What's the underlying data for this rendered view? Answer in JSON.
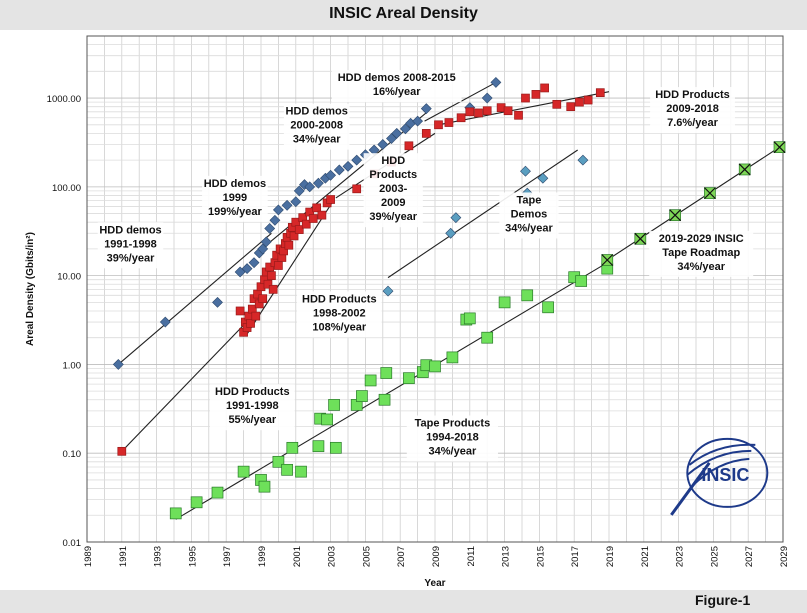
{
  "title": "INSIC Areal Density",
  "figure_label": "Figure-1",
  "chart_data": {
    "type": "scatter",
    "title": "INSIC Areal Density",
    "xlabel": "Year",
    "ylabel": "Areal Density (Gbits/in²)",
    "xlim": [
      1989,
      2029
    ],
    "ylim": [
      0.01,
      5000
    ],
    "yscale": "log",
    "grid": true,
    "x_ticks": [
      "1989",
      "1991",
      "1993",
      "1995",
      "1997",
      "1999",
      "2001",
      "2003",
      "2005",
      "2007",
      "2009",
      "2011",
      "2013",
      "2015",
      "2017",
      "2019",
      "2021",
      "2023",
      "2025",
      "2027",
      "2029"
    ],
    "y_ticks": [
      "0.01",
      "0.10",
      "1.00",
      "10.00",
      "100.00",
      "1000.00"
    ],
    "colors": {
      "hdd_demos": "#4a6fa0",
      "hdd_products": "#d62728",
      "tape_demos": "#5a9ec0",
      "tape_products": "#6ee05a",
      "roadmap": "#7ed657"
    },
    "series": [
      {
        "key": "hdd_demos",
        "marker": "diamond",
        "points": [
          [
            1990.8,
            1.0
          ],
          [
            1993.5,
            3.0
          ],
          [
            1996.5,
            5.0
          ],
          [
            1997.8,
            11.0
          ],
          [
            1998.2,
            12.0
          ],
          [
            1998.6,
            14.0
          ],
          [
            1998.9,
            18.0
          ],
          [
            1999.1,
            20.0
          ],
          [
            1999.3,
            24.0
          ],
          [
            1999.5,
            34.0
          ],
          [
            1999.8,
            42.0
          ],
          [
            2000.0,
            55.0
          ],
          [
            2000.5,
            62.0
          ],
          [
            2001.0,
            68.0
          ],
          [
            2001.2,
            90.0
          ],
          [
            2001.5,
            106.0
          ],
          [
            2001.8,
            100.0
          ],
          [
            2002.3,
            110.0
          ],
          [
            2002.7,
            125.0
          ],
          [
            2003.0,
            135.0
          ],
          [
            2003.5,
            155.0
          ],
          [
            2004.0,
            170.0
          ],
          [
            2004.5,
            200.0
          ],
          [
            2005.0,
            230.0
          ],
          [
            2005.5,
            260.0
          ],
          [
            2006.0,
            300.0
          ],
          [
            2006.5,
            350.0
          ],
          [
            2006.8,
            400.0
          ],
          [
            2007.3,
            450.0
          ],
          [
            2007.6,
            520.0
          ],
          [
            2008.0,
            550.0
          ],
          [
            2008.5,
            760.0
          ],
          [
            2011.0,
            780.0
          ],
          [
            2012.0,
            1000.0
          ],
          [
            2012.5,
            1500.0
          ]
        ]
      },
      {
        "key": "hdd_products",
        "marker": "square",
        "points": [
          [
            1991.0,
            0.105
          ],
          [
            1997.8,
            4.0
          ],
          [
            1998.0,
            2.3
          ],
          [
            1998.1,
            3.0
          ],
          [
            1998.2,
            2.6
          ],
          [
            1998.3,
            3.5
          ],
          [
            1998.4,
            2.9
          ],
          [
            1998.5,
            4.2
          ],
          [
            1998.6,
            5.5
          ],
          [
            1998.7,
            3.5
          ],
          [
            1998.8,
            6.2
          ],
          [
            1998.9,
            4.8
          ],
          [
            1999.0,
            7.5
          ],
          [
            1999.1,
            5.5
          ],
          [
            1999.2,
            9.0
          ],
          [
            1999.3,
            11.0
          ],
          [
            1999.4,
            8.0
          ],
          [
            1999.5,
            12.5
          ],
          [
            1999.6,
            10.0
          ],
          [
            1999.7,
            7.0
          ],
          [
            1999.8,
            14.0
          ],
          [
            1999.9,
            17.0
          ],
          [
            2000.0,
            13.0
          ],
          [
            2000.1,
            20.0
          ],
          [
            2000.2,
            16.0
          ],
          [
            2000.3,
            19.0
          ],
          [
            2000.4,
            23.0
          ],
          [
            2000.5,
            27.0
          ],
          [
            2000.6,
            22.0
          ],
          [
            2000.7,
            30.0
          ],
          [
            2000.8,
            35.0
          ],
          [
            2000.9,
            28.0
          ],
          [
            2001.0,
            40.0
          ],
          [
            2001.2,
            33.0
          ],
          [
            2001.4,
            45.0
          ],
          [
            2001.6,
            38.0
          ],
          [
            2001.8,
            52.0
          ],
          [
            2002.0,
            44.0
          ],
          [
            2002.2,
            58.0
          ],
          [
            2002.5,
            48.0
          ],
          [
            2002.8,
            66.0
          ],
          [
            2003.0,
            72.0
          ],
          [
            2004.5,
            95.0
          ],
          [
            2005.5,
            140.0
          ],
          [
            2006.5,
            190.0
          ],
          [
            2007.5,
            290.0
          ],
          [
            2008.5,
            400.0
          ],
          [
            2009.2,
            500.0
          ],
          [
            2009.8,
            530.0
          ],
          [
            2010.5,
            600.0
          ],
          [
            2011.0,
            700.0
          ],
          [
            2011.5,
            680.0
          ],
          [
            2012.0,
            720.0
          ],
          [
            2012.8,
            780.0
          ],
          [
            2013.2,
            720.0
          ],
          [
            2013.8,
            640.0
          ],
          [
            2014.2,
            1000.0
          ],
          [
            2014.8,
            1100.0
          ],
          [
            2015.3,
            1300.0
          ],
          [
            2016.0,
            850.0
          ],
          [
            2016.8,
            800.0
          ],
          [
            2017.3,
            900.0
          ],
          [
            2017.8,
            950.0
          ],
          [
            2018.5,
            1150.0
          ]
        ]
      },
      {
        "key": "tape_demos",
        "marker": "diamond",
        "points": [
          [
            2006.3,
            6.7
          ],
          [
            2009.9,
            30.0
          ],
          [
            2010.2,
            45.0
          ],
          [
            2014.2,
            150.0
          ],
          [
            2014.3,
            85.0
          ],
          [
            2015.2,
            125.0
          ],
          [
            2017.5,
            200.0
          ]
        ]
      },
      {
        "key": "tape_products",
        "marker": "square",
        "points": [
          [
            1994.1,
            0.021
          ],
          [
            1995.3,
            0.028
          ],
          [
            1996.5,
            0.036
          ],
          [
            1998.0,
            0.062
          ],
          [
            1999.0,
            0.05
          ],
          [
            1999.2,
            0.042
          ],
          [
            2000.0,
            0.08
          ],
          [
            2000.5,
            0.065
          ],
          [
            2000.8,
            0.115
          ],
          [
            2001.3,
            0.062
          ],
          [
            2002.3,
            0.12
          ],
          [
            2002.4,
            0.245
          ],
          [
            2002.8,
            0.24
          ],
          [
            2003.2,
            0.35
          ],
          [
            2003.3,
            0.115
          ],
          [
            2004.5,
            0.35
          ],
          [
            2004.8,
            0.44
          ],
          [
            2005.3,
            0.66
          ],
          [
            2006.1,
            0.4
          ],
          [
            2006.2,
            0.8
          ],
          [
            2007.5,
            0.7
          ],
          [
            2008.3,
            0.82
          ],
          [
            2008.5,
            0.98
          ],
          [
            2009.0,
            0.95
          ],
          [
            2010.0,
            1.2
          ],
          [
            2010.8,
            3.2
          ],
          [
            2011.0,
            3.3
          ],
          [
            2012.0,
            2.0
          ],
          [
            2013.0,
            5.0
          ],
          [
            2014.3,
            6.0
          ],
          [
            2015.5,
            4.4
          ],
          [
            2017.0,
            9.6
          ],
          [
            2017.4,
            8.7
          ],
          [
            2018.9,
            12.0
          ]
        ]
      },
      {
        "key": "roadmap",
        "marker": "square-x",
        "points": [
          [
            2018.9,
            15.0
          ],
          [
            2020.8,
            26.0
          ],
          [
            2022.8,
            48.0
          ],
          [
            2024.8,
            85.0
          ],
          [
            2026.8,
            157.0
          ],
          [
            2028.8,
            280.0
          ]
        ]
      }
    ],
    "trendlines": [
      {
        "from": [
          1990.8,
          1.0
        ],
        "to": [
          1999.6,
          30.0
        ]
      },
      {
        "from": [
          1999.3,
          22.0
        ],
        "to": [
          2008.6,
          710.0
        ]
      },
      {
        "from": [
          2008.4,
          550.0
        ],
        "to": [
          2012.5,
          1500.0
        ]
      },
      {
        "from": [
          1991.0,
          0.105
        ],
        "to": [
          1998.5,
          3.5
        ]
      },
      {
        "from": [
          1998.2,
          2.2
        ],
        "to": [
          2003.2,
          72.0
        ]
      },
      {
        "from": [
          2003.3,
          75.0
        ],
        "to": [
          2009.0,
          400.0
        ]
      },
      {
        "from": [
          2009.2,
          500.0
        ],
        "to": [
          2019.0,
          1180.0
        ]
      },
      {
        "from": [
          2006.3,
          9.5
        ],
        "to": [
          2017.2,
          260.0
        ]
      },
      {
        "from": [
          1994.1,
          0.018
        ],
        "to": [
          2018.9,
          14.0
        ]
      },
      {
        "from": [
          2018.9,
          15.0
        ],
        "to": [
          2028.8,
          280.0
        ]
      }
    ],
    "annotations": [
      {
        "lines": [
          "HDD demos 2008-2015",
          "16%/year"
        ],
        "x": 2006.8,
        "y": 1550,
        "align": "middle"
      },
      {
        "lines": [
          "HDD Products",
          "2009-2018",
          "7.6%/year"
        ],
        "x": 2023.8,
        "y": 1000,
        "align": "middle"
      },
      {
        "lines": [
          "HDD demos",
          "2000-2008",
          "34%/year"
        ],
        "x": 2002.2,
        "y": 650,
        "align": "middle"
      },
      {
        "lines": [
          "HDD demos",
          "1999",
          "199%/year"
        ],
        "x": 1997.5,
        "y": 100,
        "align": "middle"
      },
      {
        "lines": [
          "HDD",
          "Products",
          "2003-",
          "2009",
          "39%/year"
        ],
        "x": 2006.6,
        "y": 180,
        "align": "middle"
      },
      {
        "lines": [
          "Tape",
          "Demos",
          "34%/year"
        ],
        "x": 2014.4,
        "y": 65,
        "align": "middle"
      },
      {
        "lines": [
          "HDD demos",
          "1991-1998",
          "39%/year"
        ],
        "x": 1991.5,
        "y": 30,
        "align": "middle"
      },
      {
        "lines": [
          "2019-2029 INSIC",
          "Tape Roadmap",
          "34%/year"
        ],
        "x": 2024.3,
        "y": 24,
        "align": "middle"
      },
      {
        "lines": [
          "HDD Products",
          "1998-2002",
          "108%/year"
        ],
        "x": 2003.5,
        "y": 5.0,
        "align": "middle"
      },
      {
        "lines": [
          "HDD Products",
          "1991-1998",
          "55%/year"
        ],
        "x": 1998.5,
        "y": 0.45,
        "align": "middle"
      },
      {
        "lines": [
          "Tape Products",
          "1994-2018",
          "34%/year"
        ],
        "x": 2010.0,
        "y": 0.2,
        "align": "middle"
      }
    ],
    "logo": {
      "text": "INSIC",
      "color": "#1e3a8a"
    }
  }
}
